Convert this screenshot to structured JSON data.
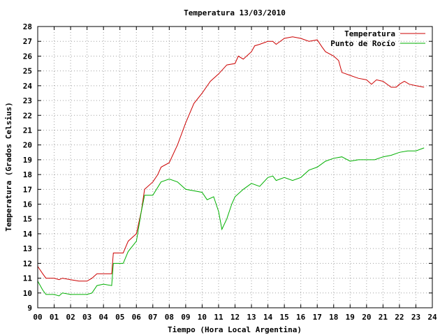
{
  "chart_data": {
    "type": "line",
    "title": "Temperatura 13/03/2010",
    "xlabel": "Tiempo (Hora Local Argentina)",
    "ylabel": "Temperatura (Grados Celsius)",
    "xlim": [
      0,
      24
    ],
    "ylim": [
      9,
      28
    ],
    "x_ticks": [
      "00",
      "01",
      "02",
      "03",
      "04",
      "05",
      "06",
      "07",
      "08",
      "09",
      "10",
      "11",
      "12",
      "13",
      "14",
      "15",
      "16",
      "17",
      "18",
      "19",
      "20",
      "21",
      "22",
      "23",
      "24"
    ],
    "y_ticks": [
      9,
      10,
      11,
      12,
      13,
      14,
      15,
      16,
      17,
      18,
      19,
      20,
      21,
      22,
      23,
      24,
      25,
      26,
      27,
      28
    ],
    "grid": true,
    "legend_position": "top-right",
    "series": [
      {
        "name": "Temperatura",
        "color": "#cc0000",
        "x": [
          0.0,
          0.3,
          0.5,
          1.0,
          1.3,
          1.5,
          2.0,
          2.5,
          3.0,
          3.3,
          3.6,
          4.0,
          4.5,
          4.6,
          5.0,
          5.2,
          5.5,
          6.0,
          6.3,
          6.5,
          7.0,
          7.3,
          7.5,
          8.0,
          8.5,
          9.0,
          9.5,
          10.0,
          10.5,
          11.0,
          11.5,
          12.0,
          12.2,
          12.5,
          13.0,
          13.2,
          13.5,
          14.0,
          14.3,
          14.5,
          15.0,
          15.5,
          16.0,
          16.5,
          17.0,
          17.3,
          17.5,
          18.0,
          18.3,
          18.5,
          19.0,
          19.5,
          20.0,
          20.3,
          20.6,
          21.0,
          21.5,
          21.8,
          22.0,
          22.3,
          22.6,
          23.0,
          23.5
        ],
        "y": [
          11.8,
          11.3,
          11.0,
          11.0,
          10.9,
          11.0,
          10.9,
          10.8,
          10.8,
          11.0,
          11.3,
          11.3,
          11.3,
          12.7,
          12.7,
          12.7,
          13.5,
          14.0,
          15.5,
          17.0,
          17.5,
          18.0,
          18.5,
          18.8,
          20.0,
          21.5,
          22.8,
          23.5,
          24.3,
          24.8,
          25.4,
          25.5,
          26.0,
          25.8,
          26.3,
          26.7,
          26.8,
          27.0,
          27.0,
          26.8,
          27.2,
          27.3,
          27.2,
          27.0,
          27.1,
          26.6,
          26.3,
          26.0,
          25.7,
          24.9,
          24.7,
          24.5,
          24.4,
          24.1,
          24.4,
          24.3,
          23.9,
          23.9,
          24.1,
          24.3,
          24.1,
          24.0,
          23.9
        ]
      },
      {
        "name": "Punto de Rocío",
        "color": "#00b000",
        "x": [
          0.0,
          0.3,
          0.5,
          1.0,
          1.3,
          1.5,
          2.0,
          2.5,
          3.0,
          3.3,
          3.6,
          4.0,
          4.5,
          4.6,
          5.0,
          5.2,
          5.5,
          6.0,
          6.3,
          6.5,
          7.0,
          7.5,
          8.0,
          8.5,
          9.0,
          9.5,
          10.0,
          10.3,
          10.7,
          11.0,
          11.2,
          11.5,
          11.8,
          12.0,
          12.5,
          13.0,
          13.5,
          14.0,
          14.3,
          14.5,
          15.0,
          15.5,
          16.0,
          16.5,
          17.0,
          17.5,
          18.0,
          18.5,
          19.0,
          19.5,
          20.0,
          20.5,
          21.0,
          21.5,
          22.0,
          22.5,
          23.0,
          23.5
        ],
        "y": [
          10.8,
          10.2,
          9.9,
          9.9,
          9.8,
          10.0,
          9.9,
          9.9,
          9.9,
          10.0,
          10.5,
          10.6,
          10.5,
          12.0,
          12.0,
          12.0,
          12.8,
          13.5,
          15.5,
          16.6,
          16.6,
          17.5,
          17.7,
          17.5,
          17.0,
          16.9,
          16.8,
          16.3,
          16.5,
          15.5,
          14.3,
          15.0,
          16.0,
          16.5,
          17.0,
          17.4,
          17.2,
          17.8,
          17.9,
          17.6,
          17.8,
          17.6,
          17.8,
          18.3,
          18.5,
          18.9,
          19.1,
          19.2,
          18.9,
          19.0,
          19.0,
          19.0,
          19.2,
          19.3,
          19.5,
          19.6,
          19.6,
          19.8
        ]
      }
    ]
  }
}
